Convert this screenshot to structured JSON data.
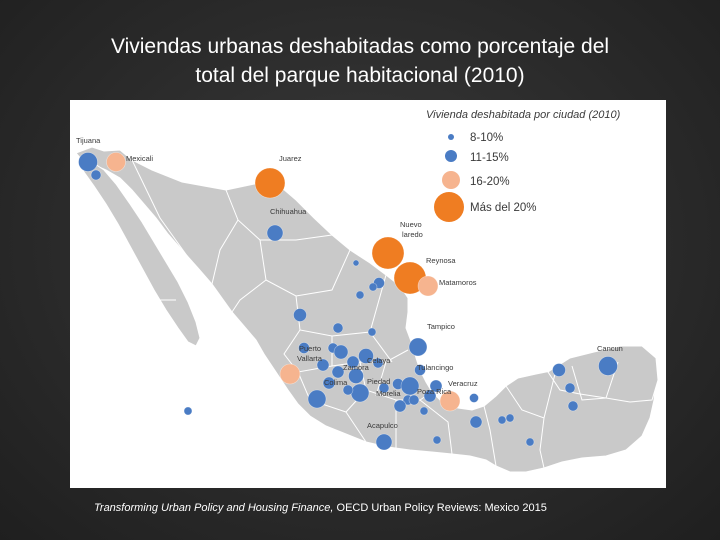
{
  "title": {
    "line1": "Viviendas urbanas deshabitadas como porcentaje del",
    "line2": "total del parque habitacional (2010)"
  },
  "legend": {
    "title": "Vivienda deshabitada por ciudad (2010)",
    "items": [
      {
        "label": "8-10%",
        "color": "#4a7cc4"
      },
      {
        "label": "11-15%",
        "color": "#4a7cc4"
      },
      {
        "label": "16-20%",
        "color": "#f6b48f"
      },
      {
        "label": "Más del 20%",
        "color": "#ef7d22"
      }
    ]
  },
  "city_labels": [
    {
      "name": "Tijuana"
    },
    {
      "name": "Mexicali"
    },
    {
      "name": "Juarez"
    },
    {
      "name": "Chihuahua"
    },
    {
      "name": "Nuevo"
    },
    {
      "name": "laredo"
    },
    {
      "name": "Reynosa"
    },
    {
      "name": "Matamoros"
    },
    {
      "name": "Tampico"
    },
    {
      "name": "Puerto"
    },
    {
      "name": "Vallarta"
    },
    {
      "name": "Celaya"
    },
    {
      "name": "Zamora"
    },
    {
      "name": "Tulancingo"
    },
    {
      "name": "Colima"
    },
    {
      "name": "Piedad"
    },
    {
      "name": "Morelia"
    },
    {
      "name": "Poza Rica"
    },
    {
      "name": "Veracruz"
    },
    {
      "name": "Acapulco"
    },
    {
      "name": "Cancun"
    }
  ],
  "colors": {
    "land": "#c9c9c9",
    "border": "#ffffff",
    "blue": "#4a7cc4",
    "light_orange": "#f6b48f",
    "orange": "#ef7d22"
  },
  "caption": {
    "italic": "Transforming Urban Policy and Housing Finance,",
    "normal": " OECD Urban Policy Reviews: Mexico 2015"
  }
}
